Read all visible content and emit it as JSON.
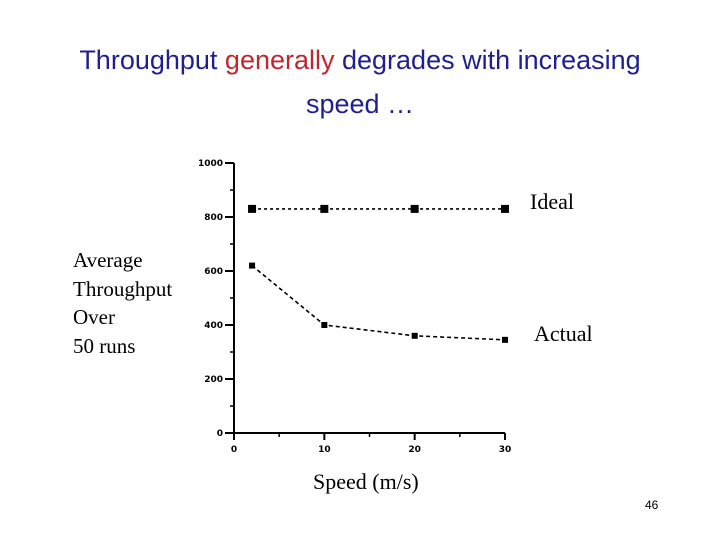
{
  "slide": {
    "title_part1": "Throughput ",
    "title_highlight": "generally",
    "title_part2": " degrades with increasing",
    "title_line2": "speed …",
    "page_number": "46"
  },
  "chart_data": {
    "type": "line",
    "title": "",
    "ylabel_lines": [
      "Average",
      "Throughput",
      "Over",
      "50 runs"
    ],
    "xlabel": "Speed (m/s)",
    "xlim": [
      0,
      30
    ],
    "ylim": [
      0,
      1000
    ],
    "xticks": [
      "0",
      "10",
      "20",
      "30"
    ],
    "yticks": [
      "0",
      "200",
      "400",
      "600",
      "800",
      "1000"
    ],
    "grid": false,
    "series": [
      {
        "name": "Ideal",
        "x": [
          2,
          10,
          20,
          30
        ],
        "y": [
          830,
          830,
          830,
          830
        ]
      },
      {
        "name": "Actual",
        "x": [
          2,
          10,
          20,
          30
        ],
        "y": [
          620,
          400,
          360,
          345
        ]
      }
    ]
  }
}
